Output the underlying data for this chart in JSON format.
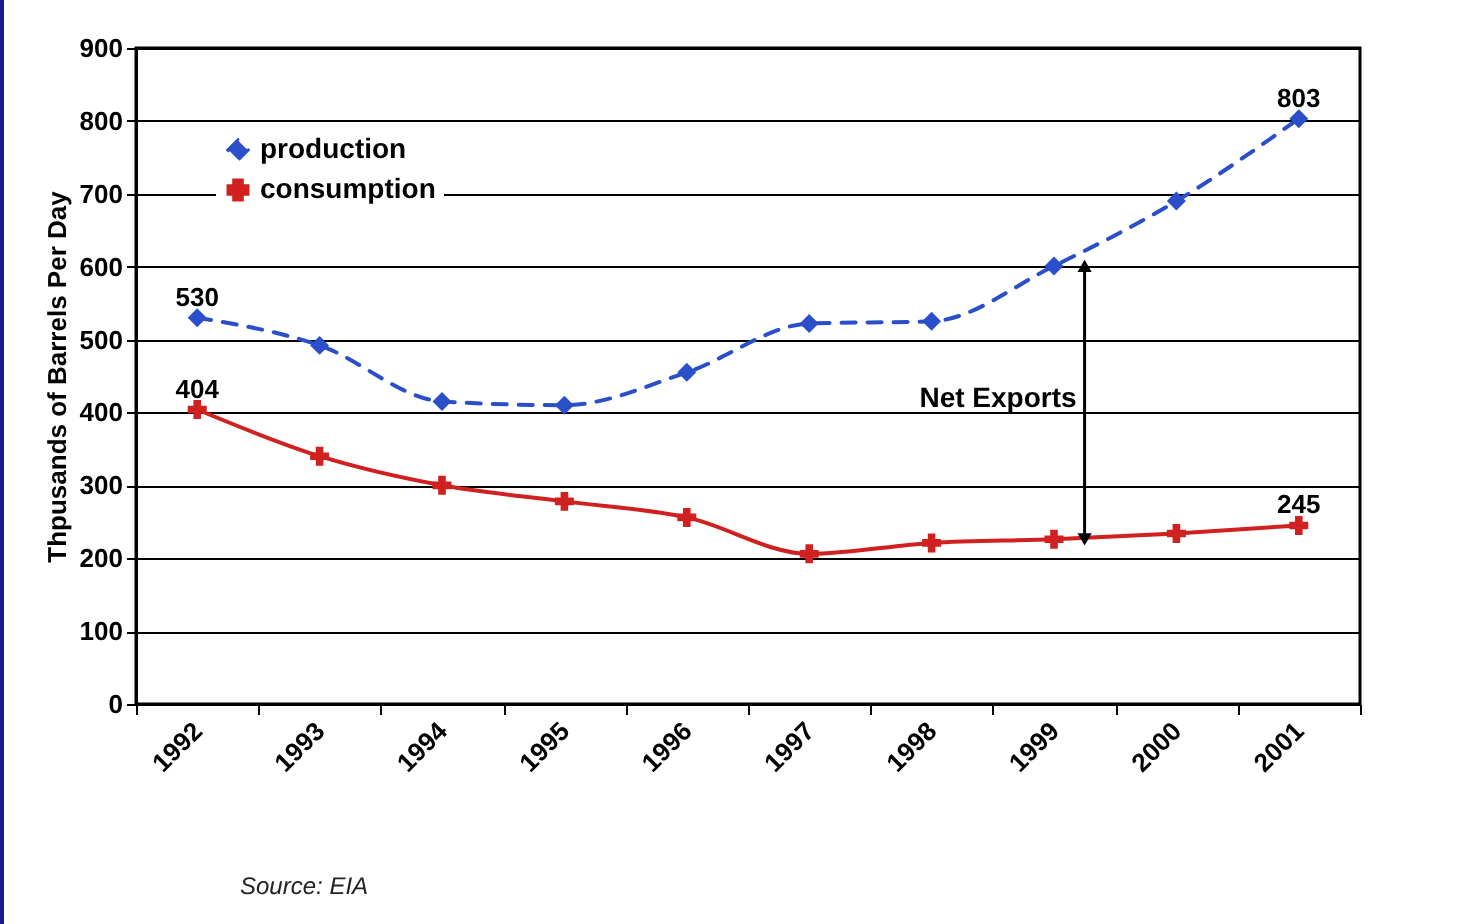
{
  "chart_data": {
    "type": "line",
    "ylabel": "Thpusands of Barrels Per Day",
    "categories": [
      "1992",
      "1993",
      "1994",
      "1995",
      "1996",
      "1997",
      "1998",
      "1999",
      "2000",
      "2001"
    ],
    "series": [
      {
        "name": "production",
        "color": "#2a4fc8",
        "marker": "diamond",
        "line_style": "dashed",
        "values": [
          530,
          492,
          415,
          410,
          455,
          522,
          525,
          601,
          690,
          803
        ],
        "value_labels": [
          "530",
          null,
          null,
          null,
          null,
          null,
          null,
          null,
          null,
          "803"
        ]
      },
      {
        "name": "consumption",
        "color": "#d02020",
        "marker": "cross",
        "line_style": "solid",
        "values": [
          404,
          340,
          300,
          278,
          256,
          206,
          221,
          226,
          234,
          245
        ],
        "value_labels": [
          "404",
          null,
          null,
          null,
          null,
          null,
          null,
          null,
          null,
          "245"
        ]
      }
    ],
    "ylim": [
      0,
      900
    ],
    "yticks": [
      0,
      100,
      200,
      300,
      400,
      500,
      600,
      700,
      800,
      900
    ],
    "grid": "y",
    "legend": "top left",
    "annotations": [
      "Net Exports",
      "Source: EIA"
    ]
  }
}
